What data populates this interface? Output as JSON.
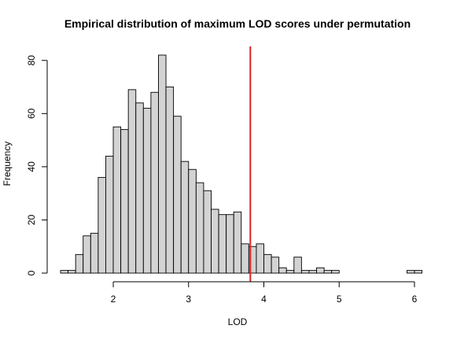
{
  "chart_data": {
    "type": "bar",
    "title": "Empirical distribution of maximum LOD scores under permutation",
    "xlabel": "LOD",
    "ylabel": "Frequency",
    "xlim": [
      1.3,
      6.0
    ],
    "ylim": [
      0,
      82
    ],
    "xticks": [
      2,
      3,
      4,
      5,
      6
    ],
    "yticks": [
      0,
      20,
      40,
      60,
      80
    ],
    "xtick_labels": [
      "2",
      "3",
      "4",
      "5",
      "6"
    ],
    "ytick_labels": [
      "0",
      "20",
      "40",
      "60",
      "80"
    ],
    "bin_start": 1.3,
    "bin_width": 0.1,
    "values": [
      1,
      1,
      7,
      14,
      15,
      36,
      44,
      55,
      54,
      69,
      64,
      62,
      68,
      82,
      70,
      59,
      42,
      39,
      34,
      31,
      24,
      22,
      22,
      23,
      11,
      10,
      11,
      7,
      6,
      2,
      1,
      6,
      1,
      1,
      2,
      1,
      1,
      0,
      0,
      0,
      0,
      0,
      0,
      0,
      0,
      0,
      1,
      1
    ],
    "bar_color": "#d3d3d3",
    "threshold": 3.82,
    "threshold_color": "#dd2222"
  }
}
